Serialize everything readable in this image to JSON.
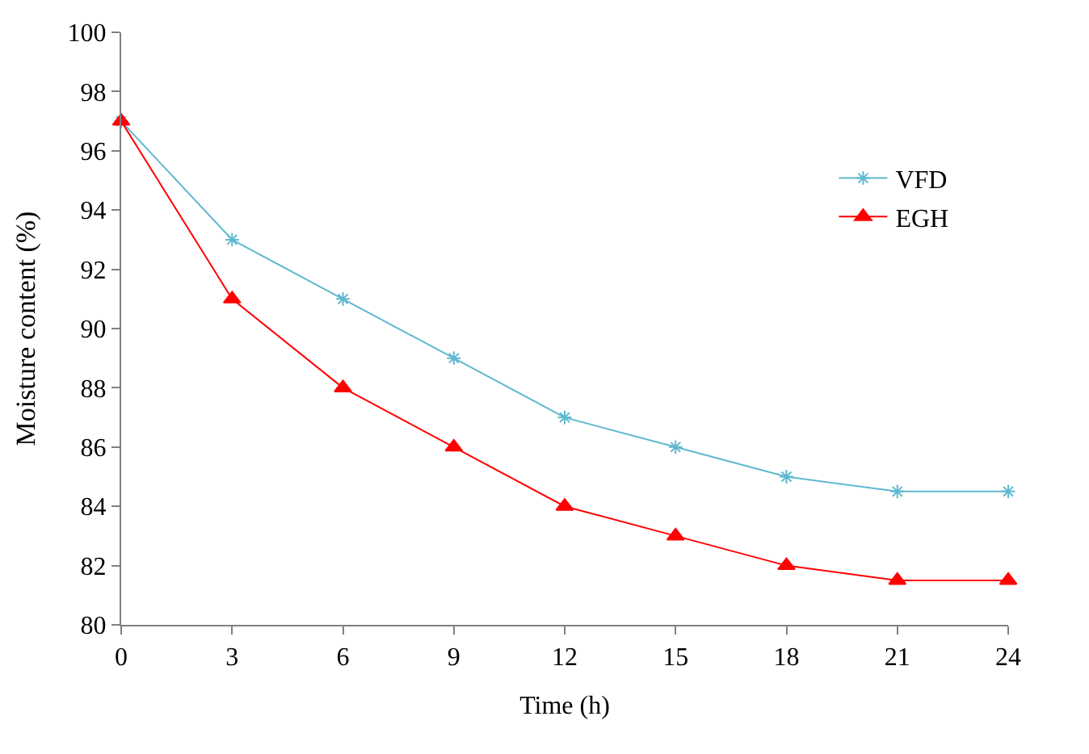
{
  "chart_data": {
    "type": "line",
    "xlabel": "Time (h)",
    "ylabel": "Moisture content (%)",
    "x": [
      0,
      3,
      6,
      9,
      12,
      15,
      18,
      21,
      24
    ],
    "series": [
      {
        "name": "VFD",
        "color": "#5fb8d0",
        "marker": "cross",
        "values": [
          97,
          93,
          91,
          89,
          87,
          86,
          85,
          84.5,
          84.5
        ]
      },
      {
        "name": "EGH",
        "color": "#ff0000",
        "marker": "triangle",
        "values": [
          97,
          91,
          88,
          86,
          84,
          83,
          82,
          81.5,
          81.5
        ]
      }
    ],
    "xlim": [
      0,
      24
    ],
    "xticks": [
      0,
      3,
      6,
      9,
      12,
      15,
      18,
      21,
      24
    ],
    "ylim": [
      80,
      100
    ],
    "yticks": [
      80,
      82,
      84,
      86,
      88,
      90,
      92,
      94,
      96,
      98,
      100
    ],
    "legend": "top right",
    "line_style": "solid"
  }
}
